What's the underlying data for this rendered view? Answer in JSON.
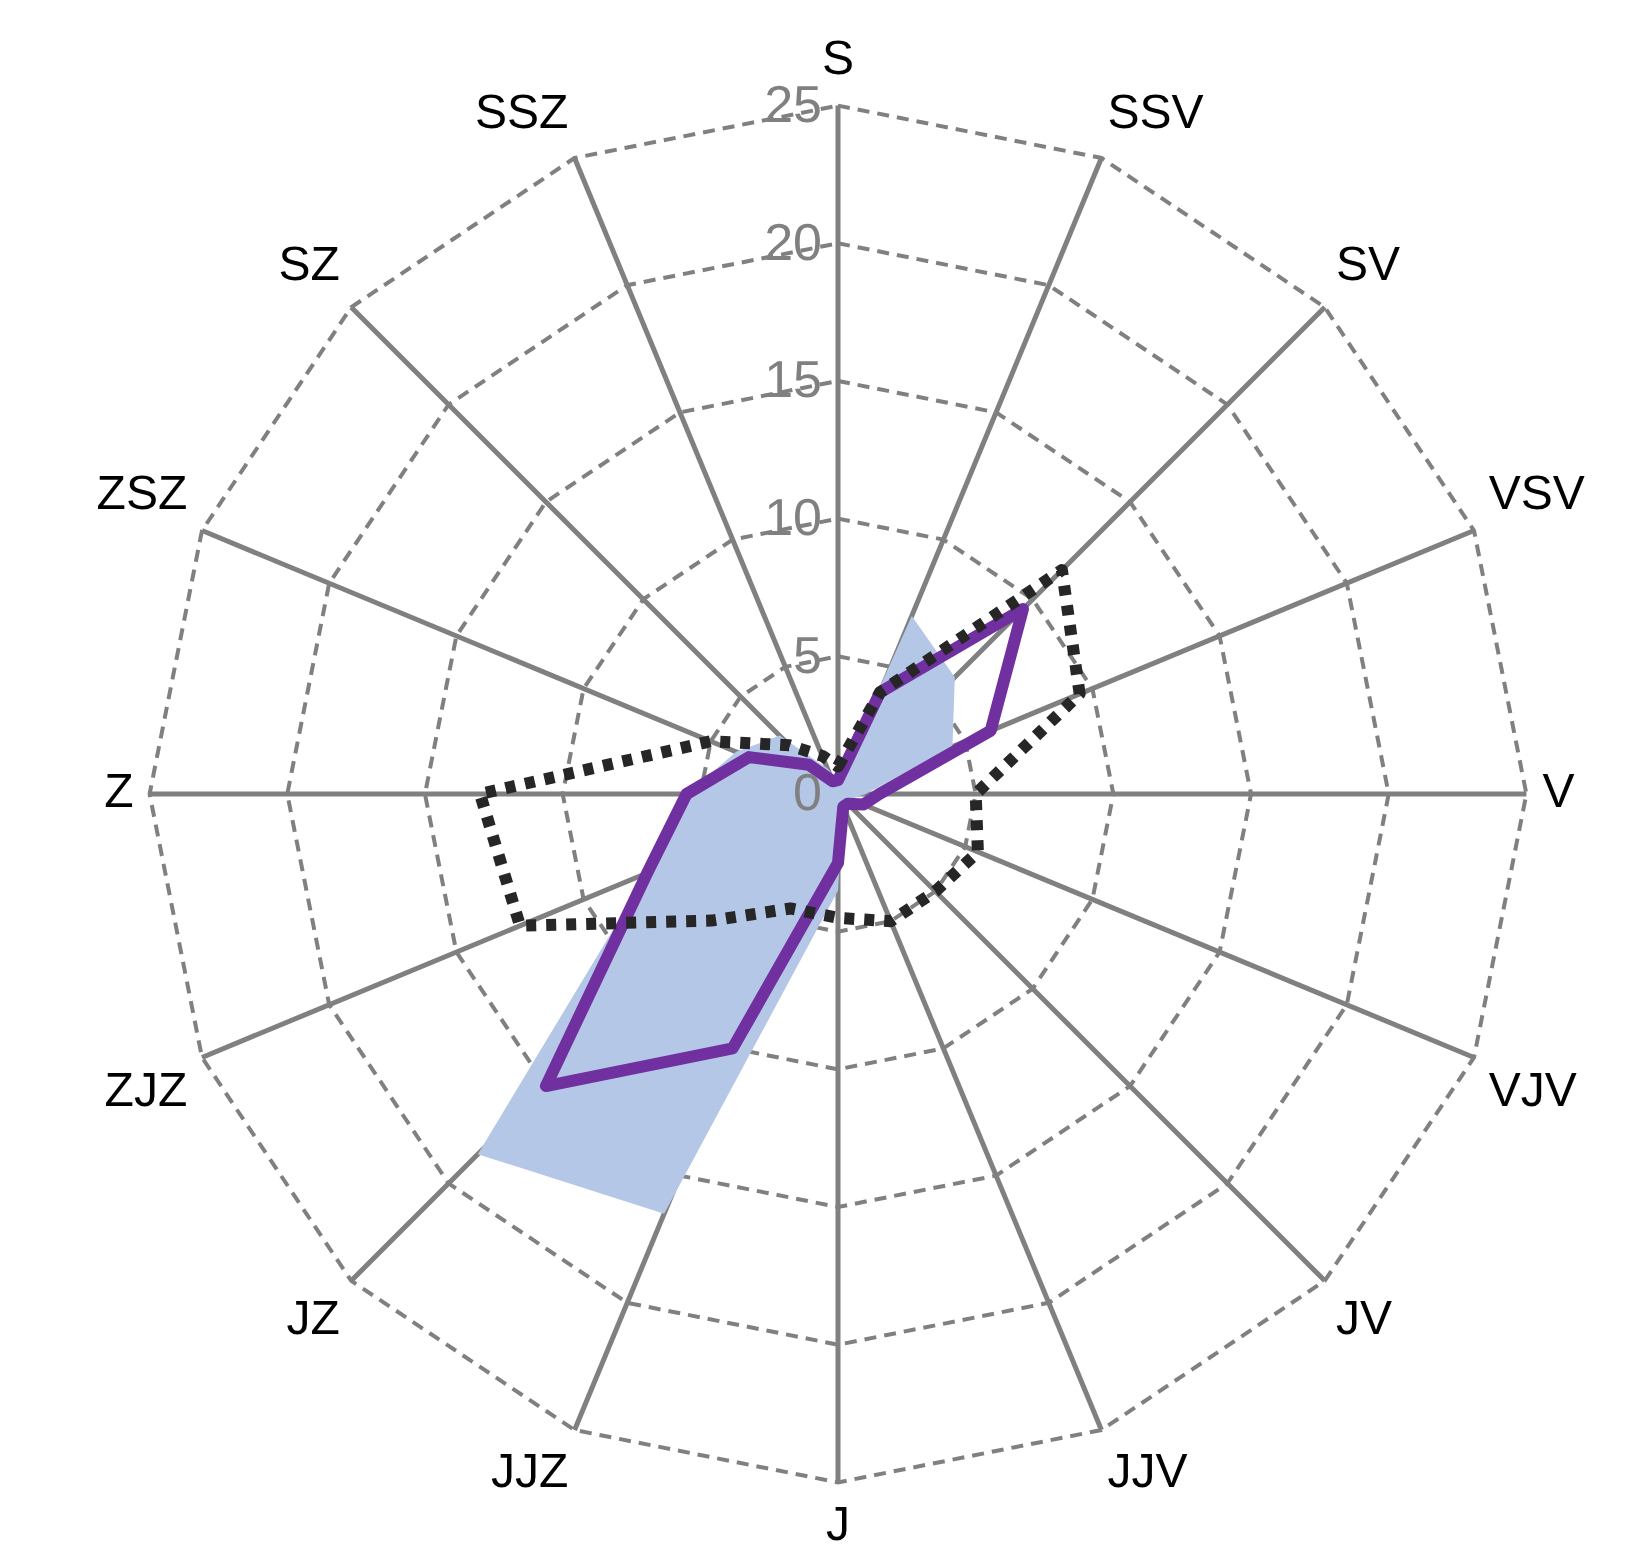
{
  "chart_data": {
    "type": "radar",
    "categories": [
      "S",
      "SSV",
      "SV",
      "VSV",
      "V",
      "VJV",
      "JV",
      "JJV",
      "J",
      "JJZ",
      "JZ",
      "ZJZ",
      "Z",
      "ZSZ",
      "SZ",
      "SSZ"
    ],
    "ylim": [
      0,
      25
    ],
    "yticks": [
      0,
      5,
      10,
      15,
      20,
      25
    ],
    "grid": true,
    "marker": "none",
    "series": [
      {
        "color": "#b4c7e7",
        "values": [
          0.5,
          7,
          6,
          4.5,
          1,
          0.5,
          0.5,
          0.5,
          3.5,
          16.5,
          18.5,
          7.5,
          5.5,
          4,
          3,
          1
        ]
      },
      {
        "color": "#7030a0",
        "line_style": "solid",
        "values": [
          0.5,
          4,
          9.5,
          6,
          1.5,
          1,
          0.5,
          0.5,
          2.5,
          10,
          15,
          7.5,
          5.5,
          3.5,
          1.5,
          0.5
        ]
      },
      {
        "color": "#262626",
        "line_style": "dotted",
        "values": [
          1,
          4,
          11.5,
          9.5,
          5,
          5.5,
          5,
          5,
          4.5,
          4.5,
          6.5,
          12.5,
          13,
          5,
          2.5,
          1.5
        ]
      }
    ]
  }
}
